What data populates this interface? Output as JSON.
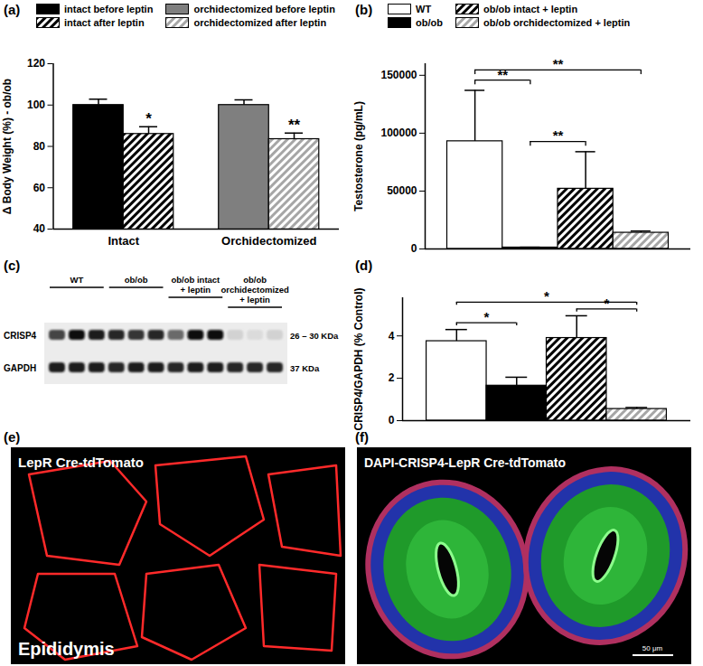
{
  "chart_data": [
    {
      "type": "bar",
      "title": "(a)",
      "ylabel": "Δ Body Weight (%) - ob/ob",
      "categories": [
        "Intact",
        "Orchidectomized"
      ],
      "series": [
        {
          "name": "intact before leptin",
          "color": "#000000",
          "line_style": "solid",
          "values": [
            100,
            null
          ],
          "errors": [
            2.8,
            null
          ]
        },
        {
          "name": "intact after leptin",
          "color": "#000000",
          "line_style": "hatched",
          "values": [
            86,
            null
          ],
          "errors": [
            3.5,
            null
          ]
        },
        {
          "name": "orchidectomized before leptin",
          "color": "#7f7f7f",
          "line_style": "solid",
          "values": [
            null,
            100
          ],
          "errors": [
            null,
            2.5
          ]
        },
        {
          "name": "orchidectomized after leptin",
          "color": "#a6a6a6",
          "line_style": "hatched",
          "values": [
            null,
            83.5
          ],
          "errors": [
            null,
            3
          ]
        }
      ],
      "ylim": [
        40,
        120
      ],
      "yticks": [
        40,
        60,
        80,
        100,
        120
      ],
      "legend": "top",
      "annotations": [
        {
          "text": "*",
          "series": 1,
          "category": 0
        },
        {
          "text": "**",
          "series": 3,
          "category": 1
        }
      ]
    },
    {
      "type": "bar",
      "title": "(b)",
      "ylabel": "Testosterone (pg/mL)",
      "series": [
        {
          "name": "WT",
          "color": "#ffffff",
          "line_style": "solid",
          "values": [
            93000
          ],
          "errors": [
            44000
          ]
        },
        {
          "name": "ob/ob",
          "color": "#000000",
          "line_style": "solid",
          "values": [
            1200
          ],
          "errors": [
            300
          ]
        },
        {
          "name": "ob/ob intact + leptin",
          "color": "#000000",
          "line_style": "hatched",
          "values": [
            52000
          ],
          "errors": [
            32000
          ]
        },
        {
          "name": "ob/ob orchidectomized + leptin",
          "color": "#a6a6a6",
          "line_style": "hatched",
          "values": [
            14000
          ],
          "errors": [
            1500
          ]
        }
      ],
      "ylim": [
        0,
        160000
      ],
      "yticks": [
        0,
        50000,
        100000,
        150000
      ],
      "legend": "top",
      "tick_labels": "y",
      "annotations": [
        {
          "text": "**",
          "from": 0,
          "to": 1
        },
        {
          "text": "**",
          "from": 1,
          "to": 2
        },
        {
          "text": "**",
          "from": 0,
          "to": 3
        }
      ]
    },
    {
      "type": "bar",
      "title": "(d)",
      "ylabel": "CRISP4/GAPDH (% Control)",
      "series": [
        {
          "color": "#ffffff",
          "line_style": "solid",
          "values": [
            3.75
          ],
          "errors": [
            0.55
          ]
        },
        {
          "color": "#000000",
          "line_style": "solid",
          "values": [
            1.65
          ],
          "errors": [
            0.4
          ]
        },
        {
          "color": "#000000",
          "line_style": "hatched",
          "values": [
            3.9
          ],
          "errors": [
            1.05
          ]
        },
        {
          "color": "#a6a6a6",
          "line_style": "hatched",
          "values": [
            0.55
          ],
          "errors": [
            0.07
          ]
        }
      ],
      "ylim": [
        0,
        5.8
      ],
      "yticks": [
        0,
        2,
        4
      ],
      "tick_labels": "y",
      "annotations": [
        {
          "text": "*",
          "from": 0,
          "to": 1
        },
        {
          "text": "*",
          "from": 2,
          "to": 3
        },
        {
          "text": "*",
          "from": 0,
          "to": 3
        }
      ]
    }
  ],
  "blot": {
    "title": "(c)",
    "groups": [
      [
        "WT"
      ],
      [
        "ob/ob"
      ],
      [
        "ob/ob intact",
        "+ leptin"
      ],
      [
        "ob/ob",
        "orchidectomized",
        "+ leptin"
      ]
    ],
    "proteins": [
      {
        "name": "CRISP4",
        "size": "26 – 30 KDa",
        "intensity": [
          0.75,
          0.95,
          0.9,
          0.85,
          0.8,
          0.85,
          0.6,
          0.95,
          0.95,
          0.15,
          0.1,
          0.15
        ]
      },
      {
        "name": "GAPDH",
        "size": "37 KDa",
        "intensity": [
          0.9,
          0.9,
          0.9,
          0.85,
          0.9,
          0.9,
          0.85,
          0.9,
          0.9,
          0.85,
          0.85,
          0.85
        ]
      }
    ]
  },
  "images": [
    {
      "title": "(e)",
      "texts": [
        "LepR Cre-tdTomato",
        "Epididymis"
      ]
    },
    {
      "title": "(f)",
      "texts": [
        "DAPI-CRISP4-LepR Cre-tdTomato"
      ],
      "scale_bar": "50 μm"
    }
  ]
}
